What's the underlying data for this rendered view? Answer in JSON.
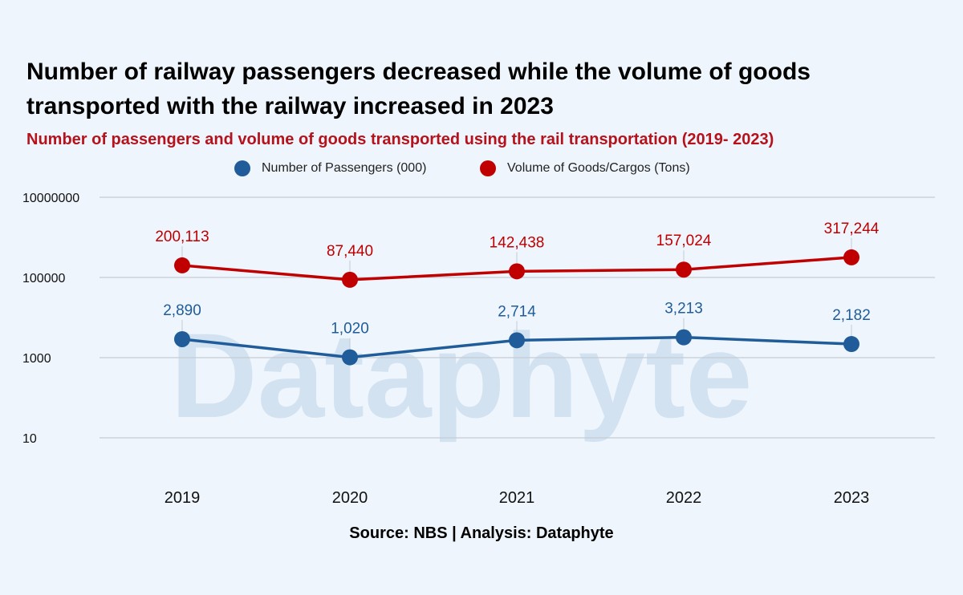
{
  "title": "Number of railway passengers decreased while the volume of goods transported with the railway increased in 2023",
  "subtitle": "Number of passengers and volume of goods transported using the rail transportation (2019- 2023)",
  "source": "Source: NBS | Analysis: Dataphyte",
  "watermark": "Dataphyte",
  "chart_data": {
    "type": "line",
    "title": "Number of railway passengers decreased while the volume of goods transported with the railway increased in 2023",
    "subtitle": "Number of passengers and volume of goods transported using the rail transportation (2019- 2023)",
    "x": [
      "2019",
      "2020",
      "2021",
      "2022",
      "2023"
    ],
    "y_scale": "log",
    "ylim": [
      1,
      10000000
    ],
    "y_ticks": [
      "10000000",
      "100000",
      "1000",
      "10"
    ],
    "legend": "top-center",
    "grid": true,
    "series": [
      {
        "name": "Number of Passengers (000)",
        "color": "#1f5c99",
        "values": [
          2890,
          1020,
          2714,
          3213,
          2182
        ],
        "labels": [
          "2,890",
          "1,020",
          "2,714",
          "3,213",
          "2,182"
        ]
      },
      {
        "name": "Volume of Goods/Cargos (Tons)",
        "color": "#c00000",
        "values": [
          200113,
          87440,
          142438,
          157024,
          317244
        ],
        "labels": [
          "200,113",
          "87,440",
          "142,438",
          "157,024",
          "317,244"
        ]
      }
    ]
  }
}
